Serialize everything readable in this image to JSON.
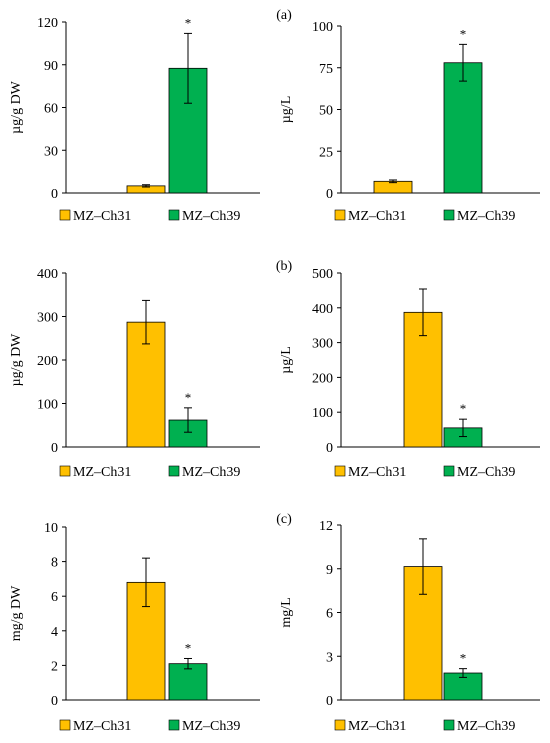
{
  "colors": {
    "MZ–Ch31": "#FFC000",
    "MZ–Ch39": "#00B050"
  },
  "panel_labels": [
    "(a)",
    "(b)",
    "(c)"
  ],
  "chart_data": [
    {
      "type": "bar",
      "categories": [
        ""
      ],
      "series": [
        {
          "name": "MZ–Ch31",
          "values": [
            5
          ],
          "error": [
            0.8
          ],
          "significance": [
            ""
          ]
        },
        {
          "name": "MZ–Ch39",
          "values": [
            87.5
          ],
          "error": [
            24.5
          ],
          "significance": [
            "*"
          ]
        }
      ],
      "ylabel": "µg/g DW",
      "ylim": [
        0,
        120
      ],
      "yticks": [
        0,
        30,
        60,
        90,
        120
      ],
      "legend": "bottom"
    },
    {
      "type": "bar",
      "categories": [
        ""
      ],
      "series": [
        {
          "name": "MZ–Ch31",
          "values": [
            7
          ],
          "error": [
            0.8
          ],
          "significance": [
            ""
          ]
        },
        {
          "name": "MZ–Ch39",
          "values": [
            78
          ],
          "error": [
            11
          ],
          "significance": [
            "*"
          ]
        }
      ],
      "ylabel": "µg/L",
      "ylim": [
        0,
        100
      ],
      "yticks": [
        0,
        25,
        50,
        75,
        100
      ],
      "legend": "bottom"
    },
    {
      "type": "bar",
      "categories": [
        ""
      ],
      "series": [
        {
          "name": "MZ–Ch31",
          "values": [
            287
          ],
          "error": [
            50
          ],
          "significance": [
            ""
          ]
        },
        {
          "name": "MZ–Ch39",
          "values": [
            62
          ],
          "error": [
            28
          ],
          "significance": [
            "*"
          ]
        }
      ],
      "ylabel": "µg/g DW",
      "ylim": [
        0,
        400
      ],
      "yticks": [
        0,
        100,
        200,
        300,
        400
      ],
      "legend": "bottom"
    },
    {
      "type": "bar",
      "categories": [
        ""
      ],
      "series": [
        {
          "name": "MZ–Ch31",
          "values": [
            387
          ],
          "error": [
            67
          ],
          "significance": [
            ""
          ]
        },
        {
          "name": "MZ–Ch39",
          "values": [
            55
          ],
          "error": [
            25
          ],
          "significance": [
            "*"
          ]
        }
      ],
      "ylabel": "µg/L",
      "ylim": [
        0,
        500
      ],
      "yticks": [
        0,
        100,
        200,
        300,
        400,
        500
      ],
      "legend": "bottom"
    },
    {
      "type": "bar",
      "categories": [
        ""
      ],
      "series": [
        {
          "name": "MZ–Ch31",
          "values": [
            6.8
          ],
          "error": [
            1.4
          ],
          "significance": [
            ""
          ]
        },
        {
          "name": "MZ–Ch39",
          "values": [
            2.1
          ],
          "error": [
            0.3
          ],
          "significance": [
            "*"
          ]
        }
      ],
      "ylabel": "mg/g DW",
      "ylim": [
        0,
        10
      ],
      "yticks": [
        0,
        2,
        4,
        6,
        8,
        10
      ],
      "legend": "bottom"
    },
    {
      "type": "bar",
      "categories": [
        ""
      ],
      "series": [
        {
          "name": "MZ–Ch31",
          "values": [
            9.15
          ],
          "error": [
            1.9
          ],
          "significance": [
            ""
          ]
        },
        {
          "name": "MZ–Ch39",
          "values": [
            1.85
          ],
          "error": [
            0.3
          ],
          "significance": [
            "*"
          ]
        }
      ],
      "ylabel": "mg/L",
      "ylim": [
        0,
        12
      ],
      "yticks": [
        0,
        3,
        6,
        9,
        12
      ],
      "legend": "bottom"
    }
  ]
}
